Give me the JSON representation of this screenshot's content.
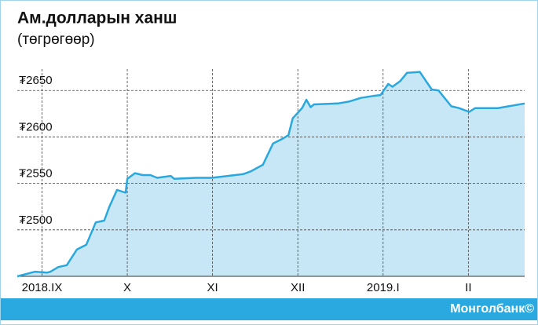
{
  "chart_data": {
    "type": "area",
    "title": "Ам.долларын ханш",
    "subtitle": "(төгрөгөөр)",
    "source": "Монголбанк©",
    "color": "#29a8e0",
    "fill_color": "#c8e7f6",
    "grid": true,
    "x": [
      -0.29,
      -0.08,
      0.06,
      0.1,
      0.19,
      0.29,
      0.41,
      0.52,
      0.63,
      0.73,
      0.79,
      0.88,
      0.98,
      1.0,
      1.09,
      1.18,
      1.27,
      1.35,
      1.51,
      1.55,
      1.81,
      1.99,
      2.18,
      2.36,
      2.45,
      2.59,
      2.71,
      2.82,
      2.89,
      2.94,
      3.0,
      3.05,
      3.1,
      3.15,
      3.19,
      3.47,
      3.6,
      3.74,
      3.88,
      3.97,
      4.06,
      4.11,
      4.2,
      4.28,
      4.43,
      4.57,
      4.65,
      4.8,
      4.89,
      5.01,
      5.08,
      5.35,
      5.66
    ],
    "values": [
      2450,
      2455,
      2454,
      2455,
      2460,
      2462,
      2479,
      2484,
      2508,
      2510,
      2525,
      2543,
      2540,
      2555,
      2561,
      2559,
      2559,
      2556,
      2558,
      2555,
      2556,
      2556,
      2558,
      2560,
      2563,
      2570,
      2593,
      2598,
      2602,
      2620,
      2626,
      2631,
      2640,
      2632,
      2635,
      2636,
      2638,
      2642,
      2644,
      2645,
      2657,
      2654,
      2660,
      2669,
      2670,
      2651,
      2650,
      2633,
      2631,
      2627,
      2631,
      2631,
      2636
    ],
    "xlim": [
      -0.29,
      5.66
    ],
    "xticks": [
      {
        "value": 0,
        "label": "2018.IX"
      },
      {
        "value": 1,
        "label": "X"
      },
      {
        "value": 2,
        "label": "XI"
      },
      {
        "value": 3,
        "label": "XII"
      },
      {
        "value": 4,
        "label": "2019.I"
      },
      {
        "value": 5,
        "label": "II"
      }
    ],
    "ylim": [
      2450,
      2673
    ],
    "yticks": [
      {
        "value": 2500,
        "label": "₮2500"
      },
      {
        "value": 2550,
        "label": "₮2550"
      },
      {
        "value": 2600,
        "label": "₮2600"
      },
      {
        "value": 2650,
        "label": "₮2650"
      }
    ]
  }
}
